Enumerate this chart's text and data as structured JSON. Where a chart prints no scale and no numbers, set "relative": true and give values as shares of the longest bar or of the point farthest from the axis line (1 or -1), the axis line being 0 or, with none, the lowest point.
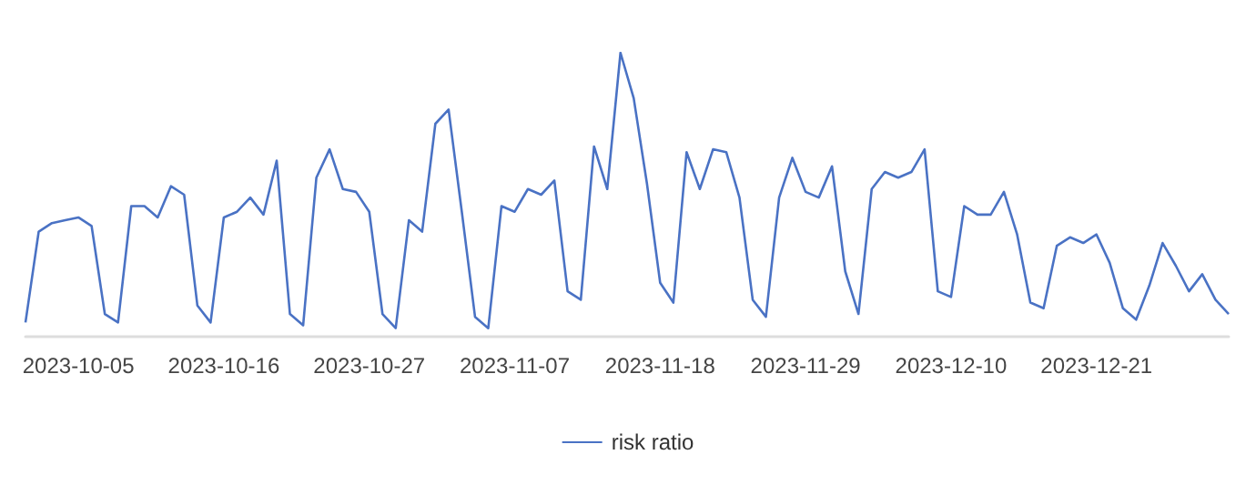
{
  "chart_data": {
    "type": "line",
    "relative": true,
    "legend": "bottom",
    "grid": false,
    "marker": "none",
    "line_style": "solid",
    "categories": [
      null,
      null,
      null,
      null,
      "2023-10-05",
      null,
      null,
      null,
      null,
      null,
      null,
      null,
      null,
      null,
      null,
      "2023-10-16",
      null,
      null,
      null,
      null,
      null,
      null,
      null,
      null,
      null,
      null,
      "2023-10-27",
      null,
      null,
      null,
      null,
      null,
      null,
      null,
      null,
      null,
      null,
      "2023-11-07",
      null,
      null,
      null,
      null,
      null,
      null,
      null,
      null,
      null,
      null,
      "2023-11-18",
      null,
      null,
      null,
      null,
      null,
      null,
      null,
      null,
      null,
      null,
      "2023-11-29",
      null,
      null,
      null,
      null,
      null,
      null,
      null,
      null,
      null,
      null,
      "2023-12-10",
      null,
      null,
      null,
      null,
      null,
      null,
      null,
      null,
      null,
      null,
      "2023-12-21",
      null,
      null,
      null,
      null,
      null,
      null,
      null,
      null,
      null,
      null
    ],
    "series": [
      {
        "name": "risk ratio",
        "color": "#4a72c4",
        "values": [
          0.05,
          0.37,
          0.4,
          0.41,
          0.42,
          0.39,
          0.08,
          0.05,
          0.46,
          0.46,
          0.42,
          0.53,
          0.5,
          0.11,
          0.05,
          0.42,
          0.44,
          0.49,
          0.43,
          0.62,
          0.08,
          0.04,
          0.56,
          0.66,
          0.52,
          0.51,
          0.44,
          0.08,
          0.03,
          0.41,
          0.37,
          0.75,
          0.8,
          0.44,
          0.07,
          0.03,
          0.46,
          0.44,
          0.52,
          0.5,
          0.55,
          0.16,
          0.13,
          0.67,
          0.52,
          1,
          0.84,
          0.54,
          0.19,
          0.12,
          0.65,
          0.52,
          0.66,
          0.65,
          0.49,
          0.13,
          0.07,
          0.49,
          0.63,
          0.51,
          0.49,
          0.6,
          0.23,
          0.08,
          0.52,
          0.58,
          0.56,
          0.58,
          0.66,
          0.16,
          0.14,
          0.46,
          0.43,
          0.43,
          0.51,
          0.36,
          0.12,
          0.1,
          0.32,
          0.35,
          0.33,
          0.36,
          0.26,
          0.1,
          0.06,
          0.18,
          0.33,
          0.25,
          0.16,
          0.22,
          0.13,
          0.08
        ]
      }
    ]
  }
}
